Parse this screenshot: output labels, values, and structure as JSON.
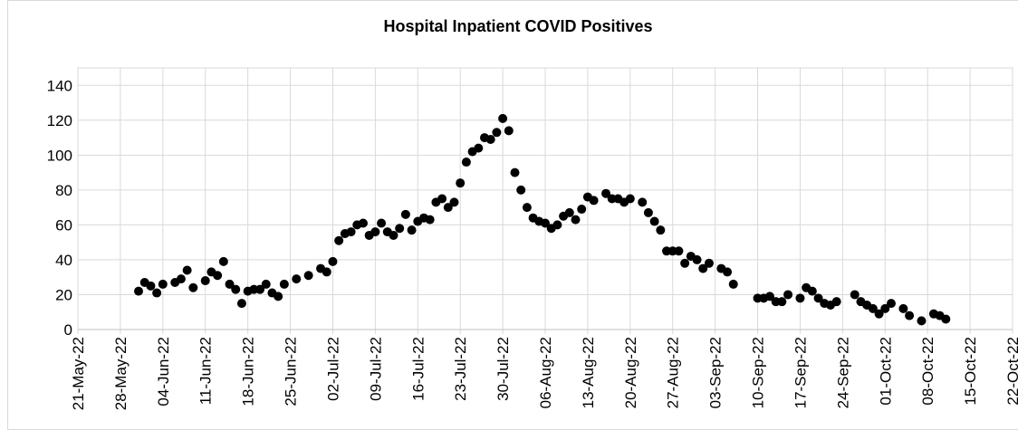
{
  "chart_data": {
    "type": "scatter",
    "title": "Hospital Inpatient COVID Positives",
    "x": [
      "31-May-22",
      "01-Jun-22",
      "02-Jun-22",
      "03-Jun-22",
      "04-Jun-22",
      "06-Jun-22",
      "07-Jun-22",
      "08-Jun-22",
      "09-Jun-22",
      "11-Jun-22",
      "12-Jun-22",
      "13-Jun-22",
      "14-Jun-22",
      "15-Jun-22",
      "16-Jun-22",
      "17-Jun-22",
      "18-Jun-22",
      "19-Jun-22",
      "20-Jun-22",
      "21-Jun-22",
      "22-Jun-22",
      "23-Jun-22",
      "24-Jun-22",
      "26-Jun-22",
      "28-Jun-22",
      "30-Jun-22",
      "01-Jul-22",
      "02-Jul-22",
      "03-Jul-22",
      "04-Jul-22",
      "05-Jul-22",
      "06-Jul-22",
      "07-Jul-22",
      "08-Jul-22",
      "09-Jul-22",
      "10-Jul-22",
      "11-Jul-22",
      "12-Jul-22",
      "13-Jul-22",
      "14-Jul-22",
      "15-Jul-22",
      "16-Jul-22",
      "17-Jul-22",
      "18-Jul-22",
      "19-Jul-22",
      "20-Jul-22",
      "21-Jul-22",
      "22-Jul-22",
      "23-Jul-22",
      "24-Jul-22",
      "25-Jul-22",
      "26-Jul-22",
      "27-Jul-22",
      "28-Jul-22",
      "29-Jul-22",
      "30-Jul-22",
      "31-Jul-22",
      "01-Aug-22",
      "02-Aug-22",
      "03-Aug-22",
      "04-Aug-22",
      "05-Aug-22",
      "06-Aug-22",
      "07-Aug-22",
      "08-Aug-22",
      "09-Aug-22",
      "10-Aug-22",
      "11-Aug-22",
      "12-Aug-22",
      "13-Aug-22",
      "14-Aug-22",
      "16-Aug-22",
      "17-Aug-22",
      "18-Aug-22",
      "19-Aug-22",
      "20-Aug-22",
      "22-Aug-22",
      "23-Aug-22",
      "24-Aug-22",
      "25-Aug-22",
      "26-Aug-22",
      "27-Aug-22",
      "28-Aug-22",
      "29-Aug-22",
      "30-Aug-22",
      "31-Aug-22",
      "01-Sep-22",
      "02-Sep-22",
      "04-Sep-22",
      "05-Sep-22",
      "06-Sep-22",
      "10-Sep-22",
      "11-Sep-22",
      "12-Sep-22",
      "13-Sep-22",
      "14-Sep-22",
      "15-Sep-22",
      "17-Sep-22",
      "18-Sep-22",
      "19-Sep-22",
      "20-Sep-22",
      "21-Sep-22",
      "22-Sep-22",
      "23-Sep-22",
      "26-Sep-22",
      "27-Sep-22",
      "28-Sep-22",
      "29-Sep-22",
      "30-Sep-22",
      "01-Oct-22",
      "02-Oct-22",
      "04-Oct-22",
      "05-Oct-22",
      "07-Oct-22",
      "09-Oct-22",
      "10-Oct-22",
      "11-Oct-22"
    ],
    "values": [
      22,
      27,
      25,
      21,
      26,
      27,
      29,
      34,
      24,
      28,
      33,
      31,
      39,
      26,
      23,
      15,
      22,
      23,
      23,
      26,
      21,
      19,
      26,
      29,
      31,
      35,
      33,
      39,
      51,
      55,
      56,
      60,
      61,
      54,
      56,
      61,
      56,
      54,
      58,
      66,
      57,
      62,
      64,
      63,
      73,
      75,
      70,
      73,
      84,
      96,
      102,
      104,
      110,
      109,
      113,
      121,
      114,
      90,
      80,
      70,
      64,
      62,
      61,
      58,
      60,
      65,
      67,
      63,
      69,
      76,
      74,
      78,
      75,
      75,
      73,
      75,
      73,
      67,
      62,
      57,
      45,
      45,
      45,
      38,
      42,
      40,
      35,
      38,
      35,
      33,
      26,
      18,
      18,
      19,
      16,
      16,
      20,
      18,
      24,
      22,
      18,
      15,
      14,
      16,
      20,
      16,
      14,
      12,
      9,
      12,
      15,
      12,
      8,
      5,
      9,
      8,
      6
    ],
    "color": "#000000",
    "xlim": [
      "21-May-22",
      "22-Oct-22"
    ],
    "xticks": [
      "21-May-22",
      "28-May-22",
      "04-Jun-22",
      "11-Jun-22",
      "18-Jun-22",
      "25-Jun-22",
      "02-Jul-22",
      "09-Jul-22",
      "16-Jul-22",
      "23-Jul-22",
      "30-Jul-22",
      "06-Aug-22",
      "13-Aug-22",
      "20-Aug-22",
      "27-Aug-22",
      "03-Sep-22",
      "10-Sep-22",
      "17-Sep-22",
      "24-Sep-22",
      "01-Oct-22",
      "08-Oct-22",
      "15-Oct-22",
      "22-Oct-22"
    ],
    "ylim": [
      0,
      150
    ],
    "yticks": [
      0,
      20,
      40,
      60,
      80,
      100,
      120,
      140
    ],
    "grid": true
  }
}
